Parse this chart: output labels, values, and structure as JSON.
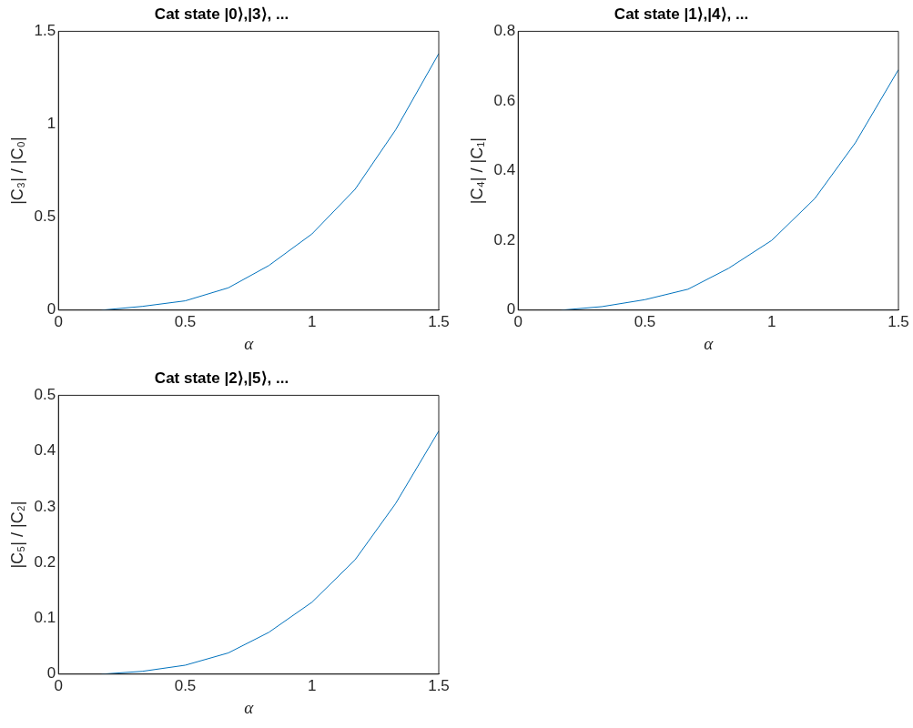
{
  "chart_data": [
    {
      "type": "line",
      "title": "Cat state |0⟩,|3⟩, ...",
      "xlabel": "α",
      "ylabel": "|C₃| / |C₀|",
      "x": [
        0.17,
        0.33,
        0.5,
        0.67,
        0.83,
        1,
        1.17,
        1.33,
        1.5
      ],
      "series": [
        {
          "color": "#0072bd",
          "values": [
            0,
            0.02,
            0.05,
            0.12,
            0.24,
            0.41,
            0.65,
            0.97,
            1.38
          ]
        }
      ],
      "xlim": [
        0,
        1.5
      ],
      "xticks": [
        0,
        0.5,
        1,
        1.5
      ],
      "ylim": [
        0,
        1.5
      ],
      "yticks": [
        0,
        0.5,
        1,
        1.5
      ],
      "grid": false,
      "legend": false,
      "marker": "none",
      "line_style": "solid"
    },
    {
      "type": "line",
      "title": "Cat state |1⟩,|4⟩, ...",
      "xlabel": "α",
      "ylabel": "|C₄| / |C₁|",
      "x": [
        0.17,
        0.33,
        0.5,
        0.67,
        0.83,
        1,
        1.17,
        1.33,
        1.5
      ],
      "series": [
        {
          "color": "#0072bd",
          "values": [
            0,
            0.01,
            0.03,
            0.06,
            0.12,
            0.2,
            0.32,
            0.48,
            0.69
          ]
        }
      ],
      "xlim": [
        0,
        1.5
      ],
      "xticks": [
        0,
        0.5,
        1,
        1.5
      ],
      "ylim": [
        0,
        0.8
      ],
      "yticks": [
        0,
        0.2,
        0.4,
        0.6,
        0.8
      ],
      "grid": false,
      "legend": false,
      "marker": "none",
      "line_style": "solid"
    },
    {
      "type": "line",
      "title": "Cat state |2⟩,|5⟩, ...",
      "xlabel": "α",
      "ylabel": "|C₅| / |C₂|",
      "x": [
        0.17,
        0.33,
        0.5,
        0.67,
        0.83,
        1,
        1.17,
        1.33,
        1.5
      ],
      "series": [
        {
          "color": "#0072bd",
          "values": [
            0,
            0.005,
            0.016,
            0.038,
            0.075,
            0.129,
            0.205,
            0.306,
            0.436
          ]
        }
      ],
      "xlim": [
        0,
        1.5
      ],
      "xticks": [
        0,
        0.5,
        1,
        1.5
      ],
      "ylim": [
        0,
        0.5
      ],
      "yticks": [
        0,
        0.1,
        0.2,
        0.3,
        0.4,
        0.5
      ],
      "grid": false,
      "legend": false,
      "marker": "none",
      "line_style": "solid"
    }
  ]
}
